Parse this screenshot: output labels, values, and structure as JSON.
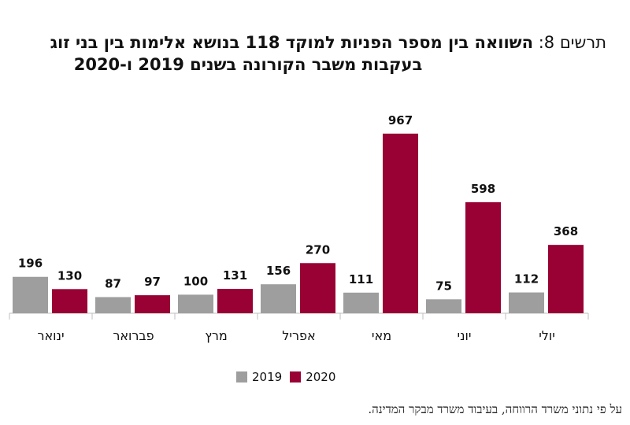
{
  "title": {
    "prefix": "תרשים 8:",
    "line1": "השוואה בין מספר הפניות למוקד 118 בנושא אלימות בין בני זוג",
    "line2": "בעקבות משבר הקורונה בשנים 2019 ו-2020"
  },
  "colors": {
    "y2019": "#9e9e9e",
    "y2020": "#990033",
    "axis": "#bfbfbf"
  },
  "chart_data": {
    "type": "bar",
    "categories": [
      "ינואר",
      "פברואר",
      "מרץ",
      "אפריל",
      "מאי",
      "יוני",
      "יולי"
    ],
    "series": [
      {
        "name": "2019",
        "values": [
          196,
          87,
          100,
          156,
          111,
          75,
          112
        ]
      },
      {
        "name": "2020",
        "values": [
          130,
          97,
          131,
          270,
          967,
          598,
          368
        ]
      }
    ],
    "ylim": [
      0,
      1000
    ],
    "grid": false,
    "legend": "bottom"
  },
  "legend": {
    "label_2019": "2019",
    "label_2020": "2020"
  },
  "source": "על פי נתוני משרד הרווחה, בעיבוד משרד מבקר המדינה."
}
